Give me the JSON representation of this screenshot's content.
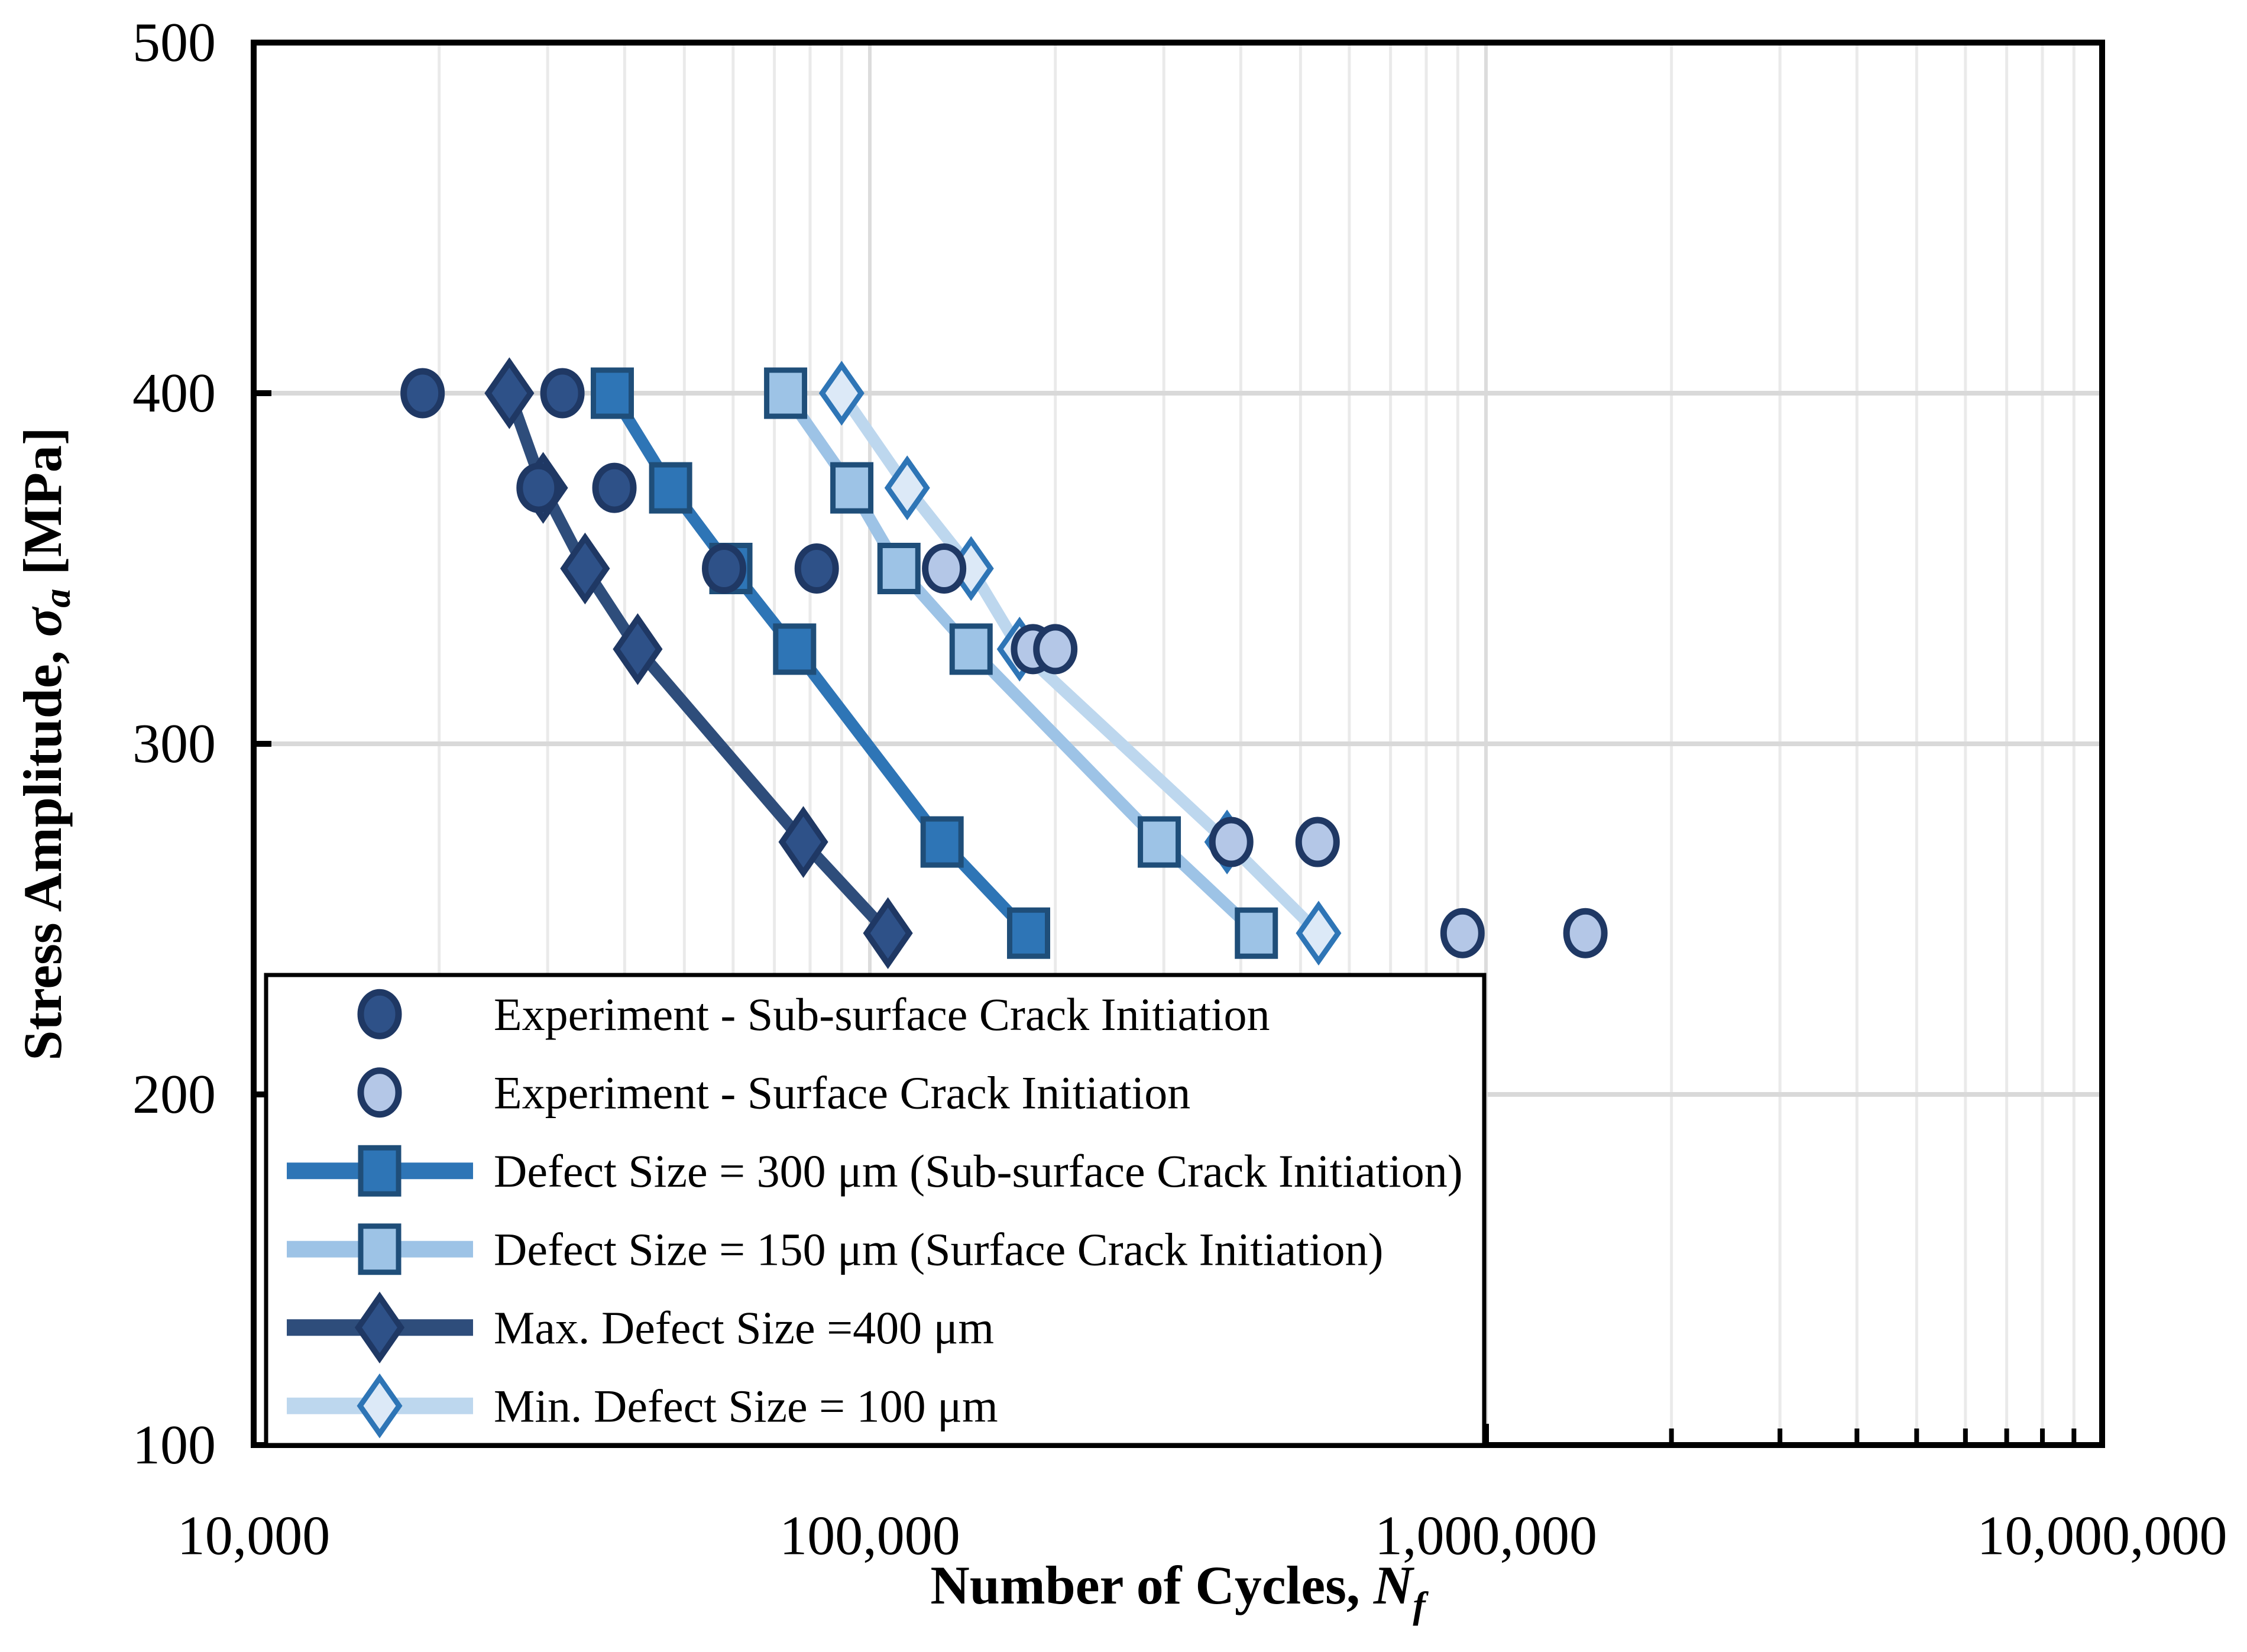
{
  "colors": {
    "background": "#ffffff",
    "frame": "#000000",
    "grid_minor": "#eaeaea",
    "grid_major": "#dcdcdc",
    "grid_horizontal": "#d9d9d9",
    "exp_subsurface_fill": "#2e5188",
    "exp_subsurface_border": "#1f3864",
    "exp_surface_fill": "#b4c7e7",
    "exp_surface_border": "#1f3864",
    "defect300_line": "#2e75b6",
    "defect300_border": "#1f4e79",
    "defect150_line": "#9dc3e6",
    "defect150_border": "#1f4e79",
    "max400_line": "#2e4d7b",
    "max400_marker_fill": "#2e5188",
    "max400_border": "#1f3864",
    "min100_line": "#bdd7ee",
    "min100_marker_fill": "#dce9f7",
    "min100_border": "#2e75b6"
  },
  "axes": {
    "x": {
      "title_prefix": "Number of Cycles, ",
      "title_symbol": "N",
      "title_sub": "f",
      "scale": "log",
      "min": 10000,
      "max": 10000000,
      "ticks": [
        {
          "label": "10,000",
          "value": 10000
        },
        {
          "label": "100,000",
          "value": 100000
        },
        {
          "label": "1,000,000",
          "value": 1000000
        },
        {
          "label": "10,000,000",
          "value": 10000000
        }
      ]
    },
    "y": {
      "title_prefix": "Stress Amplitude, ",
      "title_symbol": "σ",
      "title_sub": "a",
      "title_suffix": " [MPa]",
      "scale": "linear",
      "min": 100,
      "max": 500,
      "ticks": [
        {
          "label": "100",
          "value": 100
        },
        {
          "label": "200",
          "value": 200
        },
        {
          "label": "300",
          "value": 300
        },
        {
          "label": "400",
          "value": 400
        },
        {
          "label": "500",
          "value": 500
        }
      ]
    }
  },
  "chart_data": {
    "type": "line",
    "title": "",
    "xlabel": "Number of Cycles, Nf",
    "ylabel": "Stress Amplitude, σa [MPa]",
    "x_scale": "log",
    "xlim": [
      10000,
      10000000
    ],
    "ylim": [
      100,
      500
    ],
    "grid": "on",
    "legend_position": "bottom-left-inside",
    "stress_levels": [
      400,
      373,
      350,
      327,
      272,
      246
    ],
    "series": [
      {
        "name": "Min. Defect Size = 100 μm",
        "kind": "line",
        "marker": "diamond-open",
        "points": [
          [
            90000,
            400
          ],
          [
            115000,
            373
          ],
          [
            146000,
            350
          ],
          [
            175000,
            327
          ],
          [
            380000,
            272
          ],
          [
            535000,
            246
          ]
        ]
      },
      {
        "name": "Defect Size = 150 μm (Surface Crack Initiation)",
        "kind": "line",
        "marker": "square-light",
        "points": [
          [
            73000,
            400
          ],
          [
            93500,
            373
          ],
          [
            111500,
            350
          ],
          [
            146000,
            327
          ],
          [
            295000,
            272
          ],
          [
            424000,
            246
          ]
        ]
      },
      {
        "name": "Defect Size = 300 μm (Sub-surface Crack Initiation)",
        "kind": "line",
        "marker": "square",
        "points": [
          [
            38200,
            400
          ],
          [
            47500,
            373
          ],
          [
            59500,
            350
          ],
          [
            75500,
            327
          ],
          [
            131000,
            272
          ],
          [
            181000,
            246
          ]
        ]
      },
      {
        "name": "Max. Defect Size =400 μm",
        "kind": "line",
        "marker": "diamond",
        "points": [
          [
            26000,
            400
          ],
          [
            29500,
            373
          ],
          [
            34500,
            350
          ],
          [
            42000,
            327
          ],
          [
            78000,
            272
          ],
          [
            107000,
            246
          ]
        ]
      },
      {
        "name": "Experiment - Sub-surface Crack Initiation",
        "kind": "scatter",
        "marker": "circle-dark",
        "points": [
          [
            18800,
            400
          ],
          [
            31700,
            400
          ],
          [
            29000,
            373
          ],
          [
            38500,
            373
          ],
          [
            58000,
            350
          ],
          [
            82000,
            350
          ]
        ]
      },
      {
        "name": "Experiment - Surface Crack Initiation",
        "kind": "scatter",
        "marker": "circle-light",
        "points": [
          [
            132000,
            350
          ],
          [
            184000,
            327
          ],
          [
            200000,
            327
          ],
          [
            386000,
            272
          ],
          [
            533000,
            272
          ],
          [
            916000,
            246
          ],
          [
            1450000,
            246
          ]
        ]
      }
    ]
  },
  "legend": {
    "items": [
      {
        "label": "Experiment - Sub-surface Crack Initiation",
        "marker": "circle-dark",
        "line": false
      },
      {
        "label": "Experiment - Surface Crack Initiation",
        "marker": "circle-light",
        "line": false
      },
      {
        "label": "Defect Size = 300 μm (Sub-surface Crack Initiation)",
        "marker": "square",
        "line": true
      },
      {
        "label": "Defect Size = 150 μm (Surface Crack Initiation)",
        "marker": "square-light",
        "line": true
      },
      {
        "label": "Max. Defect Size =400 μm",
        "marker": "diamond",
        "line": true
      },
      {
        "label": "Min. Defect Size = 100 μm",
        "marker": "diamond-open",
        "line": true
      }
    ]
  }
}
